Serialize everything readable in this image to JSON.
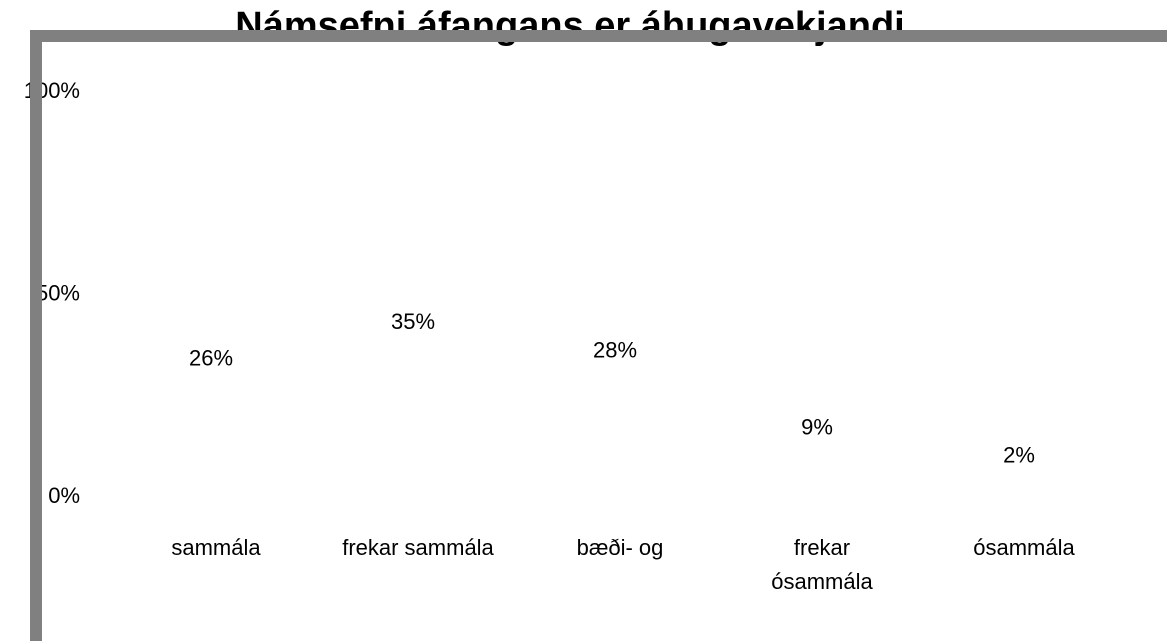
{
  "chart_data": {
    "type": "bar",
    "title": "Námsefni áfangans er áhugavekjandi",
    "categories": [
      "sammála",
      "frekar sammála",
      "bæði- og",
      "frekar ósammála",
      "ósammála"
    ],
    "values": [
      26,
      35,
      28,
      9,
      2
    ],
    "value_labels": [
      "26%",
      "35%",
      "28%",
      "9%",
      "2%"
    ],
    "ylim": [
      0,
      100
    ],
    "yticks": [
      {
        "value": 0,
        "label": "0%"
      },
      {
        "value": 50,
        "label": "50%"
      },
      {
        "value": 100,
        "label": "100%"
      }
    ]
  }
}
